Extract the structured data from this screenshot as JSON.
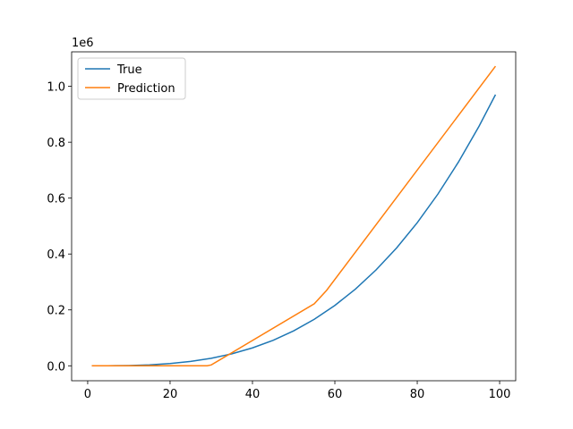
{
  "chart_data": {
    "type": "line",
    "offset_label": "1e6",
    "xlim": [
      -3.9,
      103.9
    ],
    "xticks": [
      0,
      20,
      40,
      60,
      80,
      100
    ],
    "ylim": [
      -0.0535,
      1.1235
    ],
    "yticks": [
      {
        "value": 0,
        "label": "0.0"
      },
      0.2,
      0.4,
      0.6,
      0.8,
      {
        "value": 1,
        "label": "1.0"
      }
    ],
    "legend": "upper left",
    "series": [
      {
        "name": "True",
        "color": "#1f77b4",
        "x": [
          1,
          5,
          10,
          15,
          20,
          25,
          30,
          35,
          40,
          45,
          50,
          55,
          60,
          65,
          70,
          75,
          80,
          85,
          90,
          95,
          99
        ],
        "values": [
          1e-06,
          0.000125,
          0.001,
          0.003375,
          0.008,
          0.015625,
          0.027,
          0.042875,
          0.064,
          0.091125,
          0.125,
          0.166375,
          0.216,
          0.274625,
          0.343,
          0.421875,
          0.512,
          0.614125,
          0.729,
          0.857375,
          0.970299
        ]
      },
      {
        "name": "Prediction",
        "color": "#ff7f0e",
        "x": [
          1,
          29,
          30,
          55,
          58,
          99
        ],
        "values": [
          0,
          0,
          0.003,
          0.222,
          0.27,
          1.072
        ]
      }
    ]
  }
}
